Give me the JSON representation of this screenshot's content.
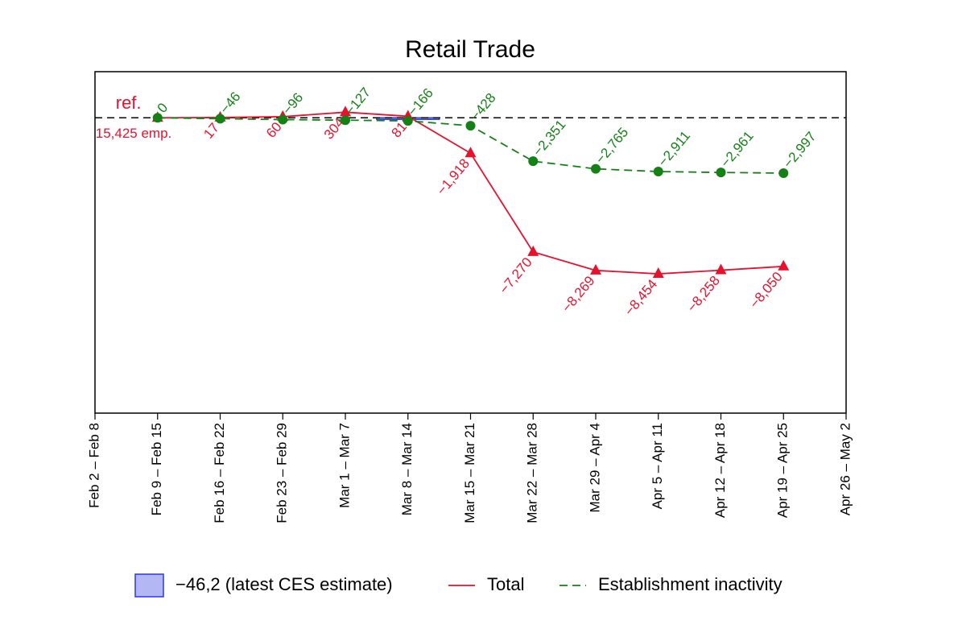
{
  "chart_data": {
    "type": "line",
    "title": "Retail Trade",
    "categories": [
      "Feb 2 – Feb 8",
      "Feb 9 – Feb 15",
      "Feb 16 – Feb 22",
      "Feb 23 – Feb 29",
      "Mar 1 – Mar 7",
      "Mar 8 – Mar 14",
      "Mar 15 – Mar 21",
      "Mar 22 – Mar 28",
      "Mar 29 – Apr 4",
      "Apr 5 – Apr 11",
      "Apr 12 – Apr 18",
      "Apr 19 – Apr 25",
      "Apr 26 – May 2"
    ],
    "series": [
      {
        "name": "Total",
        "color": "#e8112d",
        "marker": "triangle",
        "dash": false,
        "values": [
          null,
          0,
          17,
          60,
          304,
          81,
          -1918,
          -7270,
          -8269,
          -8454,
          -8258,
          -8050,
          null
        ],
        "value_labels": [
          null,
          null,
          "17",
          "60",
          "304",
          "81",
          "−1,918",
          "−7,270",
          "−8,269",
          "−8,454",
          "−8,258",
          "−8,050",
          null
        ]
      },
      {
        "name": "Establishment inactivity",
        "color": "#158015",
        "marker": "circle",
        "dash": true,
        "values": [
          null,
          0,
          -46,
          -96,
          -127,
          -166,
          -428,
          -2351,
          -2765,
          -2911,
          -2961,
          -2997,
          null
        ],
        "value_labels": [
          null,
          "0",
          "−46",
          "−96",
          "−127",
          "−166",
          "−428",
          "−2,351",
          "−2,765",
          "−2,911",
          "−2,961",
          "−2,997",
          null
        ]
      }
    ],
    "ces_estimate": {
      "name": "−46,2 (latest CES estimate)",
      "value": -46.2,
      "category": "Mar 8 – Mar 14",
      "color": "#b3b8f5",
      "edge": "#2a3ad8"
    },
    "reference": {
      "value": 0,
      "label": "ref.",
      "note": "15,425 emp."
    },
    "ylim": [
      -16000,
      2500
    ]
  }
}
